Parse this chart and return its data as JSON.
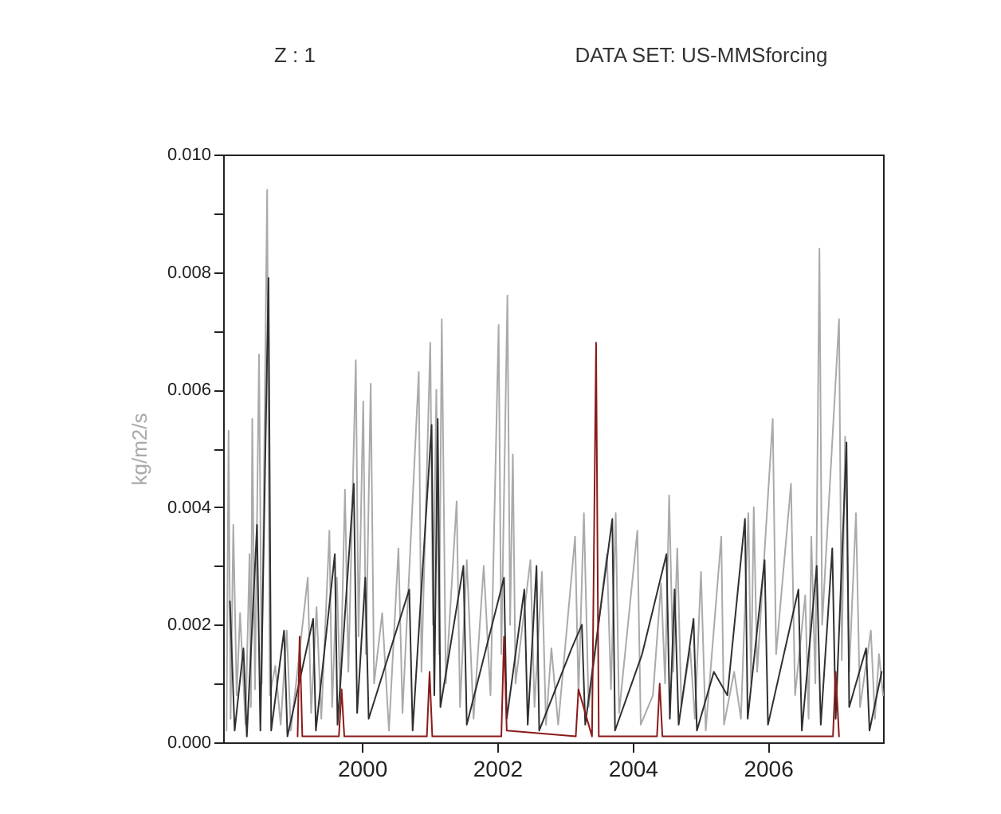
{
  "chart_data": {
    "type": "line",
    "annotations": [
      "Z : 1",
      "DATA SET: US-MMSforcing"
    ],
    "ylabel": "kg/m2/s",
    "xlim": [
      1997.95,
      2007.7
    ],
    "xticks": [
      2000,
      2002,
      2004,
      2006
    ],
    "ylim": [
      0,
      0.01
    ],
    "yticks": [
      {
        "value": 0,
        "label": "0.000"
      },
      {
        "value": 0.001,
        "label": null
      },
      {
        "value": 0.002,
        "label": "0.002"
      },
      {
        "value": 0.003,
        "label": null
      },
      {
        "value": 0.004,
        "label": "0.004"
      },
      {
        "value": 0.005,
        "label": null
      },
      {
        "value": 0.006,
        "label": "0.006"
      },
      {
        "value": 0.007,
        "label": null
      },
      {
        "value": 0.008,
        "label": "0.008"
      },
      {
        "value": 0.009,
        "label": null
      },
      {
        "value": 0.01,
        "label": "0.010"
      }
    ],
    "grid": false,
    "legend": false,
    "marker": "none",
    "line_style": "solid",
    "series": [
      {
        "color": "#aaaaaa",
        "x": [
          1998.0,
          1998.03,
          1998.06,
          1998.1,
          1998.15,
          1998.2,
          1998.28,
          1998.34,
          1998.36,
          1998.38,
          1998.42,
          1998.48,
          1998.52,
          1998.6,
          1998.64,
          1998.72,
          1998.8,
          1998.89,
          1998.95,
          1999.2,
          1999.25,
          1999.33,
          1999.4,
          1999.52,
          1999.56,
          1999.63,
          1999.68,
          1999.75,
          1999.8,
          1999.91,
          1999.95,
          2000.02,
          2000.06,
          2000.13,
          2000.18,
          2000.3,
          2000.4,
          2000.54,
          2000.6,
          2000.84,
          2000.88,
          2001.01,
          2001.05,
          2001.1,
          2001.14,
          2001.18,
          2001.24,
          2001.4,
          2001.45,
          2001.55,
          2001.65,
          2001.8,
          2001.9,
          2002.02,
          2002.06,
          2002.15,
          2002.19,
          2002.23,
          2002.27,
          2002.49,
          2002.55,
          2002.66,
          2002.72,
          2002.8,
          2002.9,
          2003.15,
          2003.2,
          2003.28,
          2003.35,
          2003.62,
          2003.68,
          2003.75,
          2003.8,
          2004.07,
          2004.12,
          2004.3,
          2004.42,
          2004.48,
          2004.54,
          2004.6,
          2004.66,
          2004.72,
          2004.85,
          2004.92,
          2005.01,
          2005.08,
          2005.31,
          2005.35,
          2005.5,
          2005.6,
          2005.71,
          2005.75,
          2005.79,
          2005.84,
          2006.07,
          2006.12,
          2006.34,
          2006.4,
          2006.55,
          2006.6,
          2006.64,
          2006.7,
          2006.76,
          2006.8,
          2007.05,
          2007.09,
          2007.14,
          2007.2,
          2007.3,
          2007.36,
          2007.52,
          2007.58,
          2007.64,
          2007.7
        ],
        "values": [
          0.0002,
          0.0053,
          0.0004,
          0.0037,
          0.0008,
          0.0022,
          0.0003,
          0.0032,
          0.0006,
          0.0055,
          0.0009,
          0.0066,
          0.001,
          0.0094,
          0.0008,
          0.0013,
          0.0003,
          0.0019,
          0.0002,
          0.0028,
          0.0005,
          0.0023,
          0.0004,
          0.0036,
          0.0006,
          0.0028,
          0.0008,
          0.0043,
          0.0012,
          0.0065,
          0.0018,
          0.0058,
          0.0015,
          0.0061,
          0.001,
          0.0022,
          0.0002,
          0.0033,
          0.0005,
          0.0063,
          0.0012,
          0.0068,
          0.002,
          0.006,
          0.0015,
          0.0072,
          0.001,
          0.0041,
          0.0006,
          0.0031,
          0.0004,
          0.003,
          0.0008,
          0.0071,
          0.0015,
          0.0076,
          0.002,
          0.0049,
          0.001,
          0.0031,
          0.0006,
          0.0029,
          0.0003,
          0.0016,
          0.0003,
          0.0035,
          0.0008,
          0.0039,
          0.0006,
          0.0032,
          0.0009,
          0.0039,
          0.0005,
          0.0036,
          0.0003,
          0.0008,
          0.0027,
          0.001,
          0.0042,
          0.0012,
          0.0033,
          0.0006,
          0.0016,
          0.0004,
          0.0029,
          0.0002,
          0.0035,
          0.0003,
          0.0012,
          0.0004,
          0.0039,
          0.001,
          0.004,
          0.0012,
          0.0055,
          0.0015,
          0.0044,
          0.0008,
          0.0025,
          0.0004,
          0.0035,
          0.001,
          0.0084,
          0.002,
          0.0072,
          0.0014,
          0.0052,
          0.0012,
          0.0039,
          0.0006,
          0.0019,
          0.0004,
          0.0015,
          0.0008
        ]
      },
      {
        "color": "#303030",
        "x": [
          1998.05,
          1998.12,
          1998.25,
          1998.3,
          1998.45,
          1998.5,
          1998.62,
          1998.66,
          1998.85,
          1998.9,
          1999.28,
          1999.32,
          1999.6,
          1999.64,
          1999.88,
          1999.93,
          2000.05,
          2000.1,
          2000.7,
          2000.75,
          2001.03,
          2001.07,
          2001.12,
          2001.16,
          2001.5,
          2001.55,
          2002.1,
          2002.14,
          2002.4,
          2002.45,
          2002.58,
          2002.62,
          2003.1,
          2003.25,
          2003.3,
          2003.7,
          2003.74,
          2004.14,
          2004.5,
          2004.55,
          2004.62,
          2004.68,
          2004.9,
          2004.95,
          2005.2,
          2005.4,
          2005.66,
          2005.7,
          2005.95,
          2006.0,
          2006.45,
          2006.5,
          2006.72,
          2006.78,
          2006.95,
          2007.0,
          2007.16,
          2007.2,
          2007.45,
          2007.5,
          2007.68
        ],
        "values": [
          0.0024,
          0.0002,
          0.0016,
          0.0001,
          0.0037,
          0.0002,
          0.0079,
          0.0002,
          0.0019,
          0.0001,
          0.0021,
          0.0002,
          0.0032,
          0.0003,
          0.0044,
          0.0005,
          0.0028,
          0.0004,
          0.0026,
          0.0002,
          0.0054,
          0.0008,
          0.0055,
          0.0006,
          0.003,
          0.0003,
          0.0028,
          0.0004,
          0.0026,
          0.0003,
          0.003,
          0.0002,
          0.0016,
          0.002,
          0.0003,
          0.0038,
          0.0002,
          0.0015,
          0.0032,
          0.0004,
          0.0026,
          0.0003,
          0.0021,
          0.0002,
          0.0012,
          0.0008,
          0.0038,
          0.0004,
          0.0031,
          0.0003,
          0.0026,
          0.0002,
          0.003,
          0.0003,
          0.0033,
          0.0004,
          0.0051,
          0.0006,
          0.0016,
          0.0002,
          0.0012
        ]
      },
      {
        "color": "#8b1a1a",
        "x": [
          1999.05,
          1999.08,
          1999.12,
          1999.66,
          1999.7,
          1999.74,
          2000.96,
          2001.0,
          2001.04,
          2002.06,
          2002.1,
          2002.14,
          2003.16,
          2003.2,
          2003.4,
          2003.46,
          2003.5,
          2004.36,
          2004.4,
          2004.44,
          2006.96,
          2007.0,
          2007.05
        ],
        "values": [
          0.0001,
          0.0018,
          0.0001,
          0.0001,
          0.0009,
          0.0001,
          0.0001,
          0.0012,
          0.0001,
          0.0001,
          0.0018,
          0.0002,
          0.0001,
          0.0009,
          0.0001,
          0.0068,
          0.0001,
          0.0001,
          0.001,
          0.0001,
          0.0001,
          0.0012,
          0.0001
        ]
      }
    ]
  }
}
